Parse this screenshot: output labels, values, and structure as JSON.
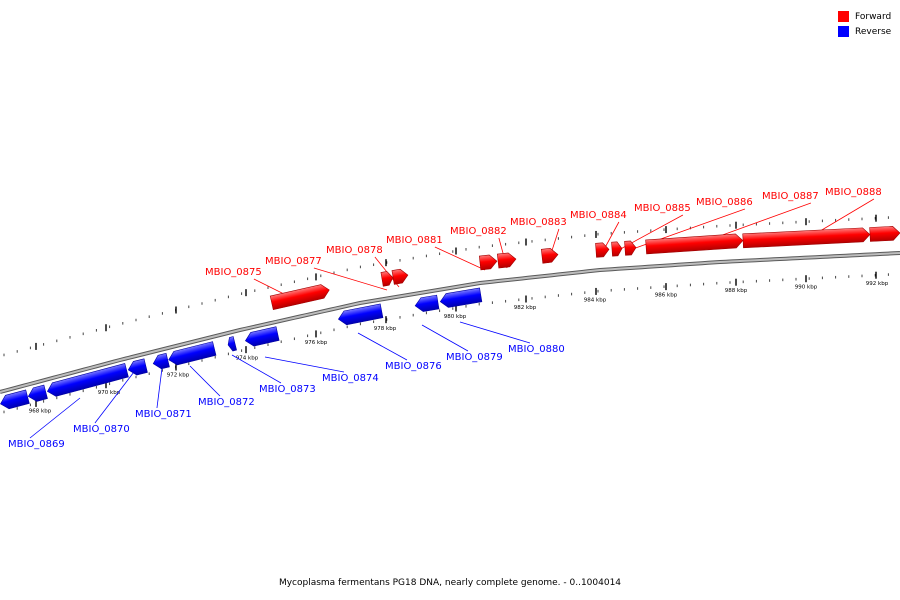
{
  "legend": [
    {
      "label": "Forward",
      "color": "#ff0000"
    },
    {
      "label": "Reverse",
      "color": "#0000ff"
    }
  ],
  "caption": "Mycoplasma fermentans PG18 DNA, nearly complete genome. - 0..1004014",
  "colors": {
    "forward": "#ff0000",
    "reverse": "#0000ff",
    "backbone": "#888888"
  },
  "ticks": [
    "968 kbp",
    "970 kbp",
    "972 kbp",
    "974 kbp",
    "976 kbp",
    "978 kbp",
    "980 kbp",
    "982 kbp",
    "984 kbp",
    "986 kbp",
    "988 kbp",
    "990 kbp",
    "992 kbp"
  ],
  "genes": [
    {
      "name": "MBIO_0869",
      "strand": "reverse"
    },
    {
      "name": "MBIO_0870",
      "strand": "reverse"
    },
    {
      "name": "MBIO_0871",
      "strand": "reverse"
    },
    {
      "name": "MBIO_0872",
      "strand": "reverse"
    },
    {
      "name": "MBIO_0873",
      "strand": "reverse"
    },
    {
      "name": "MBIO_0874",
      "strand": "reverse"
    },
    {
      "name": "MBIO_0875",
      "strand": "forward"
    },
    {
      "name": "MBIO_0876",
      "strand": "reverse"
    },
    {
      "name": "MBIO_0877",
      "strand": "forward"
    },
    {
      "name": "MBIO_0878",
      "strand": "forward"
    },
    {
      "name": "MBIO_0879",
      "strand": "reverse"
    },
    {
      "name": "MBIO_0880",
      "strand": "reverse"
    },
    {
      "name": "MBIO_0881",
      "strand": "forward"
    },
    {
      "name": "MBIO_0882",
      "strand": "forward"
    },
    {
      "name": "MBIO_0883",
      "strand": "forward"
    },
    {
      "name": "MBIO_0884",
      "strand": "forward"
    },
    {
      "name": "MBIO_0885",
      "strand": "forward"
    },
    {
      "name": "MBIO_0886",
      "strand": "forward"
    },
    {
      "name": "MBIO_0887",
      "strand": "forward"
    },
    {
      "name": "MBIO_0888",
      "strand": "forward"
    }
  ]
}
